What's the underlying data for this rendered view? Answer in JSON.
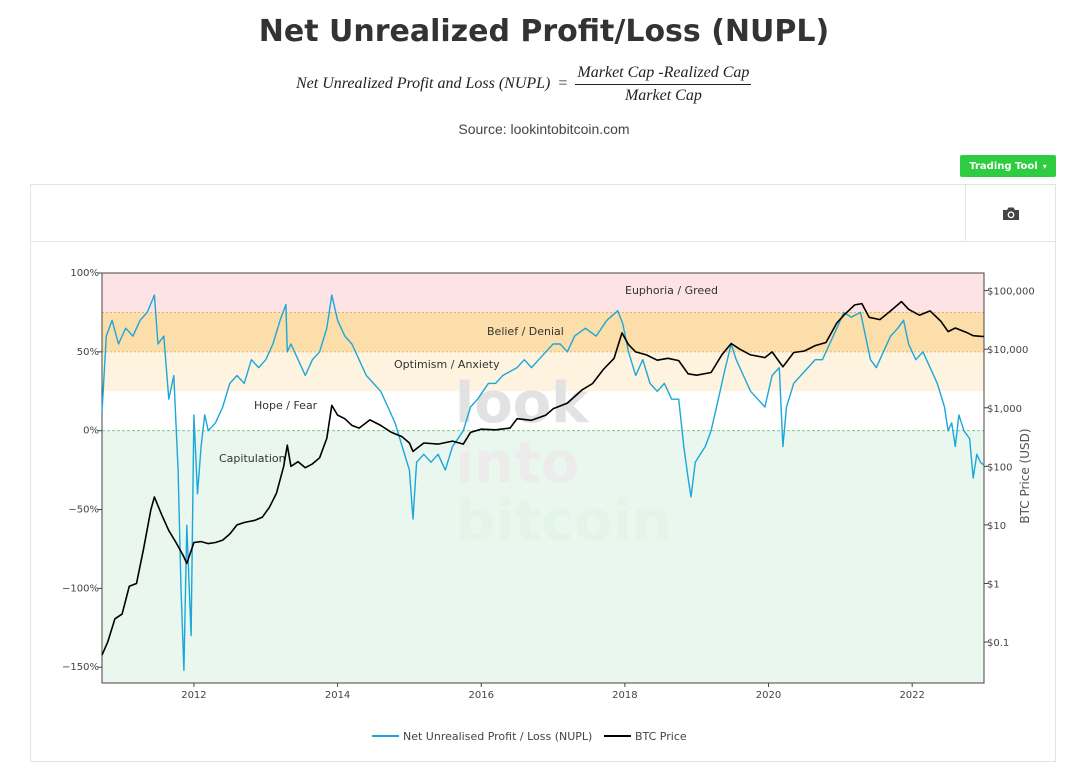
{
  "header": {
    "title": "Net Unrealized Profit/Loss (NUPL)",
    "formula_lhs": "Net Unrealized Profit and Loss (NUPL)",
    "formula_eq": "=",
    "formula_numerator": "Market Cap -Realized Cap",
    "formula_denominator": "Market Cap",
    "source": "Source: lookintobitcoin.com"
  },
  "toolbar": {
    "trading_tool_label": "Trading Tool",
    "trading_tool_caret": "▾",
    "camera_icon": "camera-icon"
  },
  "watermark": [
    "look",
    "into",
    "bitcoin"
  ],
  "colors": {
    "nupl": "#1ba7dc",
    "btc": "#000000",
    "euphoria": "#fde3e3",
    "belief": "#fbdeaa",
    "optimism": "#fdf3de",
    "hope": "#ffffff",
    "capitulation": "#eaf7ee",
    "brand_button": "#2ecc40"
  },
  "chart_data": {
    "type": "line",
    "x_ticks": [
      "2012",
      "2014",
      "2016",
      "2018",
      "2020",
      "2022"
    ],
    "x_range": [
      2010.72,
      2023.0
    ],
    "left_axis": {
      "ylim": [
        -1.6,
        1.0
      ],
      "ticks": [
        1.0,
        0.5,
        0.0,
        -0.5,
        -1.0,
        -1.5
      ],
      "tick_labels": [
        "100%",
        "50%",
        "0%",
        "−50%",
        "−100%",
        "−150%"
      ]
    },
    "right_axis": {
      "title": "BTC Price (USD)",
      "log": true,
      "ylim": [
        0.02,
        200000
      ],
      "ticks": [
        100000,
        10000,
        1000,
        100,
        10,
        1,
        0.1
      ],
      "tick_labels": [
        "$100,000",
        "$10,000",
        "$1,000",
        "$100",
        "$10",
        "$1",
        "$0.1"
      ]
    },
    "zones": [
      {
        "name": "Euphoria / Greed",
        "from": 0.75,
        "to": 1.0
      },
      {
        "name": "Belief / Denial",
        "from": 0.5,
        "to": 0.75
      },
      {
        "name": "Optimism / Anxiety",
        "from": 0.25,
        "to": 0.5
      },
      {
        "name": "Hope / Fear",
        "from": 0.0,
        "to": 0.25
      },
      {
        "name": "Capitulation",
        "from": -1.6,
        "to": 0.0
      }
    ],
    "series": [
      {
        "name": "Net Unrealised Profit / Loss (NUPL)",
        "axis": "left",
        "points": [
          [
            2010.72,
            0.12
          ],
          [
            2010.78,
            0.6
          ],
          [
            2010.86,
            0.7
          ],
          [
            2010.95,
            0.55
          ],
          [
            2011.05,
            0.65
          ],
          [
            2011.15,
            0.6
          ],
          [
            2011.25,
            0.7
          ],
          [
            2011.35,
            0.75
          ],
          [
            2011.45,
            0.86
          ],
          [
            2011.5,
            0.55
          ],
          [
            2011.58,
            0.6
          ],
          [
            2011.65,
            0.2
          ],
          [
            2011.72,
            0.35
          ],
          [
            2011.78,
            -0.25
          ],
          [
            2011.82,
            -1.0
          ],
          [
            2011.86,
            -1.52
          ],
          [
            2011.9,
            -0.6
          ],
          [
            2011.96,
            -1.3
          ],
          [
            2012.0,
            0.1
          ],
          [
            2012.05,
            -0.4
          ],
          [
            2012.1,
            -0.1
          ],
          [
            2012.15,
            0.1
          ],
          [
            2012.2,
            0.0
          ],
          [
            2012.3,
            0.05
          ],
          [
            2012.4,
            0.15
          ],
          [
            2012.5,
            0.3
          ],
          [
            2012.6,
            0.35
          ],
          [
            2012.7,
            0.3
          ],
          [
            2012.8,
            0.45
          ],
          [
            2012.9,
            0.4
          ],
          [
            2013.0,
            0.45
          ],
          [
            2013.1,
            0.55
          ],
          [
            2013.2,
            0.7
          ],
          [
            2013.28,
            0.8
          ],
          [
            2013.3,
            0.5
          ],
          [
            2013.35,
            0.55
          ],
          [
            2013.45,
            0.45
          ],
          [
            2013.55,
            0.35
          ],
          [
            2013.65,
            0.45
          ],
          [
            2013.75,
            0.5
          ],
          [
            2013.85,
            0.65
          ],
          [
            2013.92,
            0.86
          ],
          [
            2014.0,
            0.7
          ],
          [
            2014.1,
            0.6
          ],
          [
            2014.2,
            0.55
          ],
          [
            2014.3,
            0.45
          ],
          [
            2014.4,
            0.35
          ],
          [
            2014.5,
            0.3
          ],
          [
            2014.6,
            0.25
          ],
          [
            2014.7,
            0.15
          ],
          [
            2014.8,
            0.05
          ],
          [
            2014.9,
            -0.1
          ],
          [
            2015.0,
            -0.25
          ],
          [
            2015.05,
            -0.56
          ],
          [
            2015.1,
            -0.2
          ],
          [
            2015.2,
            -0.15
          ],
          [
            2015.3,
            -0.2
          ],
          [
            2015.4,
            -0.15
          ],
          [
            2015.5,
            -0.25
          ],
          [
            2015.6,
            -0.1
          ],
          [
            2015.75,
            0.0
          ],
          [
            2015.85,
            0.15
          ],
          [
            2015.95,
            0.2
          ],
          [
            2016.1,
            0.3
          ],
          [
            2016.2,
            0.3
          ],
          [
            2016.3,
            0.35
          ],
          [
            2016.5,
            0.4
          ],
          [
            2016.6,
            0.45
          ],
          [
            2016.7,
            0.4
          ],
          [
            2016.8,
            0.45
          ],
          [
            2016.9,
            0.5
          ],
          [
            2017.0,
            0.55
          ],
          [
            2017.1,
            0.55
          ],
          [
            2017.2,
            0.5
          ],
          [
            2017.3,
            0.6
          ],
          [
            2017.45,
            0.65
          ],
          [
            2017.6,
            0.6
          ],
          [
            2017.75,
            0.7
          ],
          [
            2017.9,
            0.76
          ],
          [
            2017.97,
            0.68
          ],
          [
            2018.05,
            0.5
          ],
          [
            2018.15,
            0.35
          ],
          [
            2018.25,
            0.45
          ],
          [
            2018.35,
            0.3
          ],
          [
            2018.45,
            0.25
          ],
          [
            2018.55,
            0.3
          ],
          [
            2018.65,
            0.2
          ],
          [
            2018.75,
            0.2
          ],
          [
            2018.82,
            -0.1
          ],
          [
            2018.88,
            -0.3
          ],
          [
            2018.92,
            -0.42
          ],
          [
            2018.98,
            -0.2
          ],
          [
            2019.05,
            -0.15
          ],
          [
            2019.12,
            -0.1
          ],
          [
            2019.2,
            0.0
          ],
          [
            2019.3,
            0.2
          ],
          [
            2019.4,
            0.4
          ],
          [
            2019.48,
            0.55
          ],
          [
            2019.55,
            0.45
          ],
          [
            2019.65,
            0.35
          ],
          [
            2019.75,
            0.25
          ],
          [
            2019.85,
            0.2
          ],
          [
            2019.95,
            0.15
          ],
          [
            2020.05,
            0.35
          ],
          [
            2020.15,
            0.4
          ],
          [
            2020.2,
            -0.1
          ],
          [
            2020.25,
            0.15
          ],
          [
            2020.35,
            0.3
          ],
          [
            2020.45,
            0.35
          ],
          [
            2020.55,
            0.4
          ],
          [
            2020.65,
            0.45
          ],
          [
            2020.75,
            0.45
          ],
          [
            2020.85,
            0.55
          ],
          [
            2020.95,
            0.65
          ],
          [
            2021.05,
            0.75
          ],
          [
            2021.15,
            0.72
          ],
          [
            2021.28,
            0.75
          ],
          [
            2021.35,
            0.6
          ],
          [
            2021.42,
            0.45
          ],
          [
            2021.5,
            0.4
          ],
          [
            2021.6,
            0.5
          ],
          [
            2021.7,
            0.6
          ],
          [
            2021.8,
            0.65
          ],
          [
            2021.88,
            0.7
          ],
          [
            2021.95,
            0.55
          ],
          [
            2022.05,
            0.45
          ],
          [
            2022.15,
            0.5
          ],
          [
            2022.25,
            0.4
          ],
          [
            2022.35,
            0.3
          ],
          [
            2022.45,
            0.15
          ],
          [
            2022.5,
            0.0
          ],
          [
            2022.55,
            0.05
          ],
          [
            2022.6,
            -0.1
          ],
          [
            2022.65,
            0.1
          ],
          [
            2022.72,
            0.0
          ],
          [
            2022.8,
            -0.05
          ],
          [
            2022.85,
            -0.3
          ],
          [
            2022.9,
            -0.15
          ],
          [
            2022.95,
            -0.2
          ],
          [
            2023.0,
            -0.22
          ]
        ]
      },
      {
        "name": "BTC Price",
        "axis": "right",
        "points": [
          [
            2010.72,
            0.06
          ],
          [
            2010.8,
            0.1
          ],
          [
            2010.9,
            0.25
          ],
          [
            2011.0,
            0.3
          ],
          [
            2011.1,
            0.9
          ],
          [
            2011.2,
            1.0
          ],
          [
            2011.3,
            4.0
          ],
          [
            2011.4,
            18.0
          ],
          [
            2011.45,
            30.0
          ],
          [
            2011.55,
            15.0
          ],
          [
            2011.65,
            8.0
          ],
          [
            2011.75,
            5.0
          ],
          [
            2011.85,
            3.0
          ],
          [
            2011.9,
            2.2
          ],
          [
            2012.0,
            5.0
          ],
          [
            2012.1,
            5.2
          ],
          [
            2012.2,
            4.8
          ],
          [
            2012.3,
            5.0
          ],
          [
            2012.4,
            5.5
          ],
          [
            2012.5,
            7.0
          ],
          [
            2012.6,
            10.0
          ],
          [
            2012.7,
            11.0
          ],
          [
            2012.85,
            12.0
          ],
          [
            2012.95,
            13.5
          ],
          [
            2013.05,
            20.0
          ],
          [
            2013.15,
            35.0
          ],
          [
            2013.25,
            100.0
          ],
          [
            2013.3,
            230.0
          ],
          [
            2013.35,
            100.0
          ],
          [
            2013.45,
            120.0
          ],
          [
            2013.55,
            95.0
          ],
          [
            2013.65,
            110.0
          ],
          [
            2013.75,
            140.0
          ],
          [
            2013.85,
            300.0
          ],
          [
            2013.92,
            1100.0
          ],
          [
            2014.0,
            750.0
          ],
          [
            2014.1,
            650.0
          ],
          [
            2014.2,
            500.0
          ],
          [
            2014.3,
            450.0
          ],
          [
            2014.45,
            620.0
          ],
          [
            2014.6,
            500.0
          ],
          [
            2014.75,
            380.0
          ],
          [
            2014.9,
            320.0
          ],
          [
            2015.0,
            250.0
          ],
          [
            2015.05,
            180.0
          ],
          [
            2015.2,
            250.0
          ],
          [
            2015.4,
            240.0
          ],
          [
            2015.6,
            270.0
          ],
          [
            2015.75,
            240.0
          ],
          [
            2015.85,
            380.0
          ],
          [
            2016.0,
            430.0
          ],
          [
            2016.2,
            420.0
          ],
          [
            2016.4,
            450.0
          ],
          [
            2016.5,
            650.0
          ],
          [
            2016.7,
            610.0
          ],
          [
            2016.9,
            750.0
          ],
          [
            2017.0,
            960.0
          ],
          [
            2017.2,
            1200.0
          ],
          [
            2017.4,
            2000.0
          ],
          [
            2017.55,
            2600.0
          ],
          [
            2017.7,
            4500.0
          ],
          [
            2017.85,
            7000.0
          ],
          [
            2017.96,
            19000.0
          ],
          [
            2018.05,
            12000.0
          ],
          [
            2018.15,
            9000.0
          ],
          [
            2018.3,
            8000.0
          ],
          [
            2018.45,
            6500.0
          ],
          [
            2018.6,
            7000.0
          ],
          [
            2018.75,
            6400.0
          ],
          [
            2018.88,
            3800.0
          ],
          [
            2019.0,
            3600.0
          ],
          [
            2019.2,
            4000.0
          ],
          [
            2019.35,
            8000.0
          ],
          [
            2019.48,
            12500.0
          ],
          [
            2019.6,
            10000.0
          ],
          [
            2019.75,
            8000.0
          ],
          [
            2019.95,
            7200.0
          ],
          [
            2020.05,
            9000.0
          ],
          [
            2020.2,
            5000.0
          ],
          [
            2020.35,
            8800.0
          ],
          [
            2020.5,
            9300.0
          ],
          [
            2020.65,
            11500.0
          ],
          [
            2020.8,
            13000.0
          ],
          [
            2020.95,
            28000.0
          ],
          [
            2021.05,
            38000.0
          ],
          [
            2021.2,
            57000.0
          ],
          [
            2021.3,
            60000.0
          ],
          [
            2021.4,
            35000.0
          ],
          [
            2021.55,
            32000.0
          ],
          [
            2021.7,
            45000.0
          ],
          [
            2021.85,
            65000.0
          ],
          [
            2021.95,
            48000.0
          ],
          [
            2022.1,
            38000.0
          ],
          [
            2022.25,
            45000.0
          ],
          [
            2022.4,
            30000.0
          ],
          [
            2022.5,
            20000.0
          ],
          [
            2022.6,
            23000.0
          ],
          [
            2022.75,
            19500.0
          ],
          [
            2022.85,
            17000.0
          ],
          [
            2022.95,
            16600.0
          ],
          [
            2023.0,
            16500.0
          ]
        ]
      }
    ],
    "legend": [
      "Net Unrealised Profit / Loss (NUPL)",
      "BTC Price"
    ],
    "legend_position": "bottom-center",
    "grid": false
  }
}
